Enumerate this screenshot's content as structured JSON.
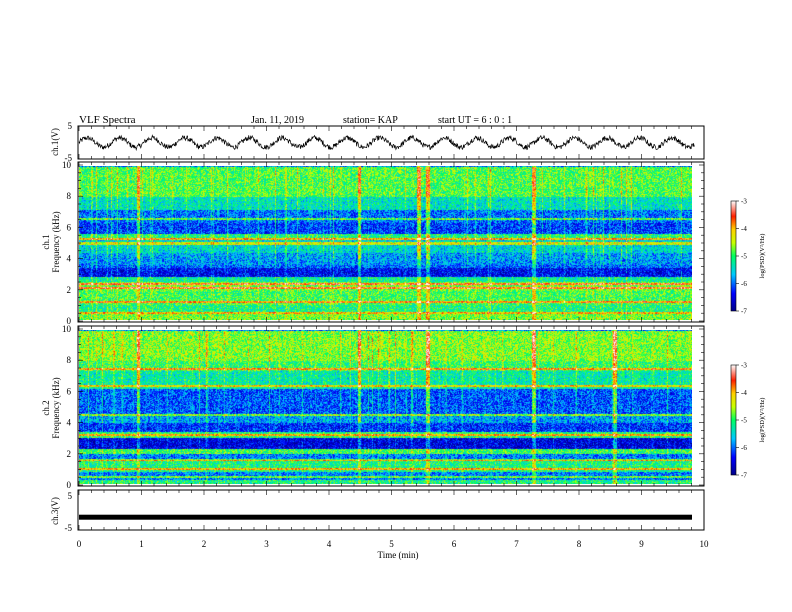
{
  "header": {
    "title": "VLF Spectra",
    "date": "Jan. 11, 2019",
    "station": "station= KAP",
    "start_ut": "start UT =  6 : 0 : 1"
  },
  "chart_data": [
    {
      "type": "line",
      "panel": "ch1-waveform",
      "ylabel": "ch.1(V)",
      "ylim": [
        -5,
        5
      ],
      "yticks": [
        "5",
        "-5"
      ],
      "xlim": [
        0,
        10
      ],
      "oscillation_period_min": 0.52,
      "amplitude_v": 1.5,
      "line_color": "#000000"
    },
    {
      "type": "heatmap",
      "panel": "ch1-spectrogram",
      "ylabel_line1": "ch.1",
      "ylabel_line2": "Frequency (kHz)",
      "ylim": [
        0,
        10
      ],
      "yticks": [
        "0",
        "2",
        "4",
        "6",
        "8",
        "10"
      ],
      "xlim": [
        0,
        9.85
      ],
      "colorbar": {
        "label": "log(PSD)(V²/Hz)",
        "range": [
          -7,
          -3
        ],
        "ticks": [
          "-3",
          "-4",
          "-5",
          "-6",
          "-7"
        ]
      },
      "bands_khz": [
        {
          "f0": 0.0,
          "f1": 0.4,
          "level": -4.8
        },
        {
          "f0": 0.4,
          "f1": 1.0,
          "level": -5.2
        },
        {
          "f0": 1.0,
          "f1": 1.9,
          "level": -5.0
        },
        {
          "f0": 1.9,
          "f1": 2.5,
          "level": -4.8
        },
        {
          "f0": 2.5,
          "f1": 2.8,
          "level": -5.3
        },
        {
          "f0": 2.8,
          "f1": 3.4,
          "level": -6.5
        },
        {
          "f0": 3.4,
          "f1": 3.6,
          "level": -6.1
        },
        {
          "f0": 3.6,
          "f1": 4.4,
          "level": -5.9
        },
        {
          "f0": 4.4,
          "f1": 5.2,
          "level": -5.6
        },
        {
          "f0": 5.2,
          "f1": 5.6,
          "level": -5.2
        },
        {
          "f0": 5.6,
          "f1": 6.3,
          "level": -6.3
        },
        {
          "f0": 6.3,
          "f1": 7.2,
          "level": -6.1
        },
        {
          "f0": 7.2,
          "f1": 8.0,
          "level": -5.5
        },
        {
          "f0": 8.0,
          "f1": 10.0,
          "level": -5.0
        }
      ],
      "tone_lines_khz": [
        0.5,
        1.2,
        2.1,
        2.35,
        5.0,
        5.3,
        6.6
      ],
      "bursts_min": [
        0.95,
        4.5,
        5.45,
        5.6,
        7.3
      ]
    },
    {
      "type": "heatmap",
      "panel": "ch2-spectrogram",
      "ylabel_line1": "ch.2",
      "ylabel_line2": "Frequency (kHz)",
      "ylim": [
        0,
        10
      ],
      "yticks": [
        "0",
        "2",
        "4",
        "6",
        "8",
        "10"
      ],
      "xlim": [
        0,
        9.85
      ],
      "colorbar": {
        "label": "log(PSD)(V²/Hz)",
        "range": [
          -7,
          -3
        ],
        "ticks": [
          "-3",
          "-4",
          "-5",
          "-6",
          "-7"
        ]
      },
      "bands_khz": [
        {
          "f0": 0.0,
          "f1": 0.3,
          "level": -5.2
        },
        {
          "f0": 0.3,
          "f1": 0.8,
          "level": -6.0
        },
        {
          "f0": 0.8,
          "f1": 1.6,
          "level": -5.2
        },
        {
          "f0": 1.6,
          "f1": 2.0,
          "level": -6.0
        },
        {
          "f0": 2.0,
          "f1": 2.3,
          "level": -5.0
        },
        {
          "f0": 2.3,
          "f1": 3.0,
          "level": -6.6
        },
        {
          "f0": 3.0,
          "f1": 3.4,
          "level": -5.1
        },
        {
          "f0": 3.4,
          "f1": 4.0,
          "level": -6.3
        },
        {
          "f0": 4.0,
          "f1": 4.6,
          "level": -5.9
        },
        {
          "f0": 4.6,
          "f1": 6.2,
          "level": -6.2
        },
        {
          "f0": 6.2,
          "f1": 7.4,
          "level": -5.4
        },
        {
          "f0": 7.4,
          "f1": 8.0,
          "level": -5.1
        },
        {
          "f0": 8.0,
          "f1": 10.0,
          "level": -4.8
        }
      ],
      "tone_lines_khz": [
        0.5,
        1.0,
        1.6,
        3.2,
        4.5,
        6.4,
        7.5
      ],
      "bursts_min": [
        0.95,
        4.5,
        5.6,
        7.3,
        8.6
      ]
    },
    {
      "type": "line",
      "panel": "ch3-waveform",
      "ylabel": "ch.3(V)",
      "ylim": [
        -5,
        5
      ],
      "yticks": [
        "5",
        "-5"
      ],
      "xlim": [
        0,
        10
      ],
      "constant_value_v": -1.8,
      "line_color": "#000000"
    }
  ],
  "xaxis": {
    "label": "Time  (min)",
    "range": [
      0,
      10
    ],
    "ticks": [
      "0",
      "1",
      "2",
      "3",
      "4",
      "5",
      "6",
      "7",
      "8",
      "9",
      "10"
    ]
  }
}
